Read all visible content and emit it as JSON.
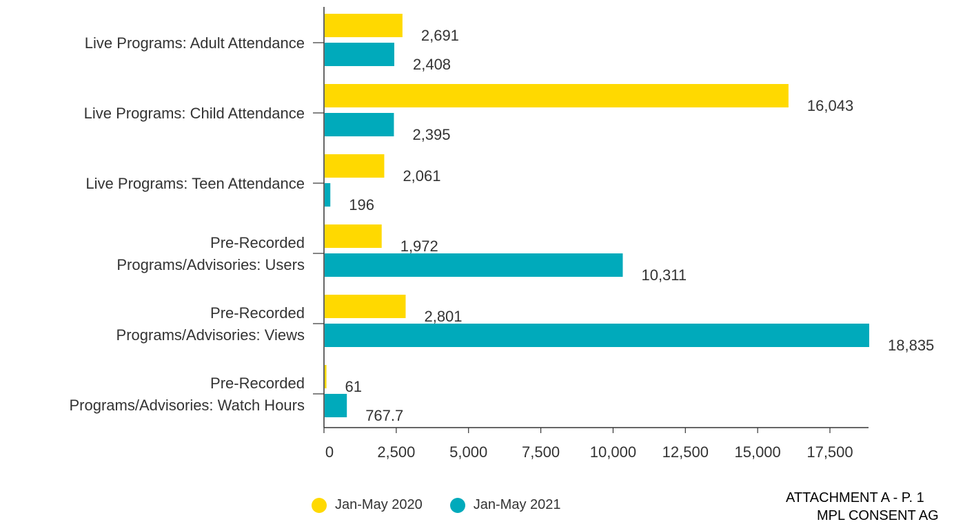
{
  "chart_data": {
    "type": "bar",
    "orientation": "horizontal",
    "categories": [
      [
        "Live Programs: Adult Attendance"
      ],
      [
        "Live Programs: Child Attendance"
      ],
      [
        "Live Programs: Teen Attendance"
      ],
      [
        "Pre-Recorded",
        "Programs/Advisories: Users"
      ],
      [
        "Pre-Recorded",
        "Programs/Advisories: Views"
      ],
      [
        "Pre-Recorded",
        "Programs/Advisories: Watch Hours"
      ]
    ],
    "series": [
      {
        "name": "Jan-May 2020",
        "color": "#FFD900",
        "values": [
          2691,
          16043,
          2061,
          1972,
          2801,
          61
        ],
        "labels": [
          "2,691",
          "16,043",
          "2,061",
          "1,972",
          "2,801",
          "61"
        ]
      },
      {
        "name": "Jan-May 2021",
        "color": "#00AABB",
        "values": [
          2408,
          2395,
          196,
          10311,
          18835,
          767.7
        ],
        "labels": [
          "2,408",
          "2,395",
          "196",
          "10,311",
          "18,835",
          "767.7"
        ]
      }
    ],
    "xlim": [
      0,
      18835
    ],
    "xticks": [
      0,
      2500,
      5000,
      7500,
      10000,
      12500,
      15000,
      17500
    ],
    "xtick_labels": [
      "0",
      "2,500",
      "5,000",
      "7,500",
      "10,000",
      "12,500",
      "15,000",
      "17,500"
    ],
    "legend_position": "bottom",
    "grid": false
  },
  "footer": {
    "line1": "ATTACHMENT A - P. 1",
    "line2": "MPL CONSENT AG"
  }
}
